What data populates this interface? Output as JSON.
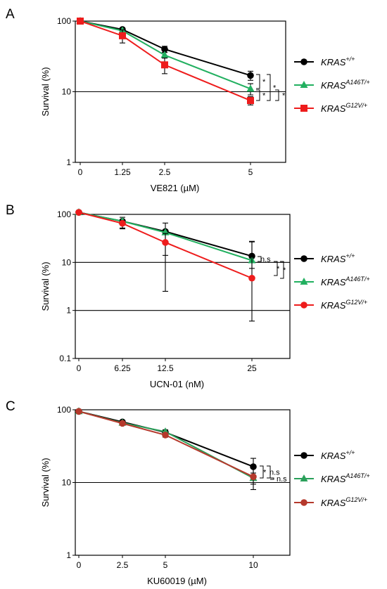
{
  "chart_data": [
    {
      "panel": "A",
      "type": "line",
      "yscale": "log",
      "ylim": [
        1,
        100
      ],
      "ylabel": "Survival (%)",
      "xlabel": "VE821 (µM)",
      "x_tick_labels": [
        "0",
        "1.25",
        "2.5",
        "5"
      ],
      "y_tick_labels": [
        "1",
        "10",
        "100"
      ],
      "reference_line_y": 10,
      "series": [
        {
          "name": "KRAS+/+",
          "gene": "KRAS",
          "allele": "+/+",
          "color": "#000000",
          "marker": "circle",
          "x": [
            0,
            1.25,
            2.5,
            5
          ],
          "y": [
            100,
            76,
            40,
            17
          ],
          "err": [
            0,
            4,
            4,
            2.5
          ]
        },
        {
          "name": "KRASA146T/+",
          "gene": "KRAS",
          "allele": "A146T/+",
          "color": "#22b060",
          "marker": "triangle",
          "x": [
            0,
            1.25,
            2.5,
            5
          ],
          "y": [
            100,
            73,
            33,
            11
          ],
          "err": [
            0,
            4,
            3,
            2
          ]
        },
        {
          "name": "KRASG12V/+",
          "gene": "KRAS",
          "allele": "G12V/+",
          "color": "#ee1c1c",
          "marker": "square",
          "x": [
            0,
            1.25,
            2.5,
            5
          ],
          "y": [
            100,
            62,
            24,
            7.5
          ],
          "err": [
            0,
            13,
            6,
            1
          ]
        }
      ],
      "significance": [
        "*",
        "*",
        "*",
        "*"
      ]
    },
    {
      "panel": "B",
      "type": "line",
      "yscale": "log",
      "ylim": [
        0.1,
        100
      ],
      "ylabel": "Survival (%)",
      "xlabel": "UCN-01 (nM)",
      "x_tick_labels": [
        "0",
        "6.25",
        "12.5",
        "25"
      ],
      "y_tick_labels": [
        "0.1",
        "1",
        "10",
        "100"
      ],
      "reference_lines_y": [
        10,
        1
      ],
      "series": [
        {
          "name": "KRAS+/+",
          "gene": "KRAS",
          "allele": "+/+",
          "color": "#000000",
          "marker": "circle",
          "x": [
            0,
            6.25,
            12.5,
            25
          ],
          "y": [
            110,
            72,
            44,
            13.5
          ],
          "err_low": [
            0,
            20,
            30,
            6
          ],
          "err_high": [
            0,
            15,
            22,
            14
          ]
        },
        {
          "name": "KRASA146T/+",
          "gene": "KRAS",
          "allele": "A146T/+",
          "color": "#22b060",
          "marker": "triangle",
          "x": [
            0,
            6.25,
            12.5,
            25
          ],
          "y": [
            110,
            72,
            42,
            11
          ],
          "err_low": [
            0,
            0,
            0,
            0
          ],
          "err_high": [
            0,
            0,
            0,
            0
          ]
        },
        {
          "name": "KRASG12V/+",
          "gene": "KRAS",
          "allele": "G12V/+",
          "color": "#ee1c1c",
          "marker": "circle",
          "x": [
            0,
            6.25,
            12.5,
            25
          ],
          "y": [
            110,
            65,
            26,
            4.7
          ],
          "err_low": [
            0,
            15,
            23.5,
            4.1
          ],
          "err_high": [
            0,
            10,
            14,
            22
          ]
        }
      ],
      "significance": [
        "n.s",
        "*",
        "*"
      ]
    },
    {
      "panel": "C",
      "type": "line",
      "yscale": "log",
      "ylim": [
        1,
        100
      ],
      "ylabel": "Survival (%)",
      "xlabel": "KU60019 (µM)",
      "x_tick_labels": [
        "0",
        "2.5",
        "5",
        "10"
      ],
      "y_tick_labels": [
        "1",
        "10",
        "100"
      ],
      "reference_line_y": 10,
      "series": [
        {
          "name": "KRAS+/+",
          "gene": "KRAS",
          "allele": "+/+",
          "color": "#000000",
          "marker": "circle",
          "x": [
            0,
            2.5,
            5,
            10
          ],
          "y": [
            95,
            68,
            49,
            16.5
          ],
          "err": [
            0,
            2,
            3,
            5
          ]
        },
        {
          "name": "KRASA146T/+",
          "gene": "KRAS",
          "allele": "A146T/+",
          "color": "#2aa05a",
          "marker": "triangle",
          "x": [
            0,
            2.5,
            5,
            10
          ],
          "y": [
            95,
            66,
            50,
            11.5
          ],
          "err": [
            0,
            2,
            3,
            2
          ]
        },
        {
          "name": "KRASG12V/+",
          "gene": "KRAS",
          "allele": "G12V/+",
          "color": "#b5392c",
          "marker": "circle",
          "x": [
            0,
            2.5,
            5,
            10
          ],
          "y": [
            95,
            65,
            45,
            12
          ],
          "err": [
            0,
            2,
            3,
            4
          ]
        }
      ],
      "significance": [
        "*",
        "n.s",
        "n.s"
      ]
    }
  ]
}
